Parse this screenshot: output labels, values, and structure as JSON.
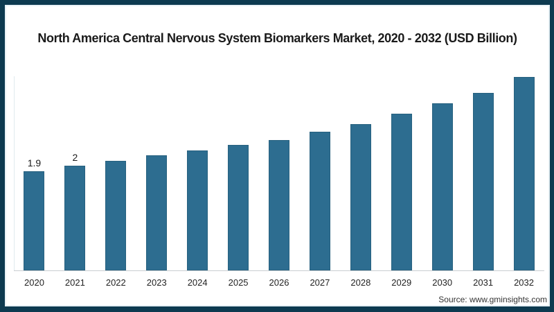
{
  "frame": {
    "border_color": "#0d3a50",
    "inner_glow_color": "#e8f1f6",
    "background": "#ffffff"
  },
  "header": {
    "title": "North America Central Nervous System Biomarkers Market, 2020 - 2032 (USD Billion)"
  },
  "footer": {
    "source": "Source: www.gminsights.com"
  },
  "chart_data": {
    "type": "bar",
    "title": "North America Central Nervous System Biomarkers Market, 2020 - 2032 (USD Billion)",
    "categories": [
      "2020",
      "2021",
      "2022",
      "2023",
      "2024",
      "2025",
      "2026",
      "2027",
      "2028",
      "2029",
      "2030",
      "2031",
      "2032"
    ],
    "values": [
      1.9,
      2.0,
      2.1,
      2.2,
      2.3,
      2.4,
      2.5,
      2.65,
      2.8,
      3.0,
      3.2,
      3.4,
      3.7
    ],
    "value_labels": [
      "1.9",
      "2",
      "",
      "",
      "",
      "",
      "",
      "",
      "",
      "",
      "",
      "",
      ""
    ],
    "xlabel": "",
    "ylabel": "",
    "ylim": [
      0,
      3.85
    ],
    "grid": false,
    "legend": "none",
    "bar_color": "#2d6d90",
    "bar_edge_color": "#27617f",
    "axis_line_color": "#c9cdd1",
    "y_axis_line_color": "#dfe9ee",
    "label_color": "#222222"
  }
}
